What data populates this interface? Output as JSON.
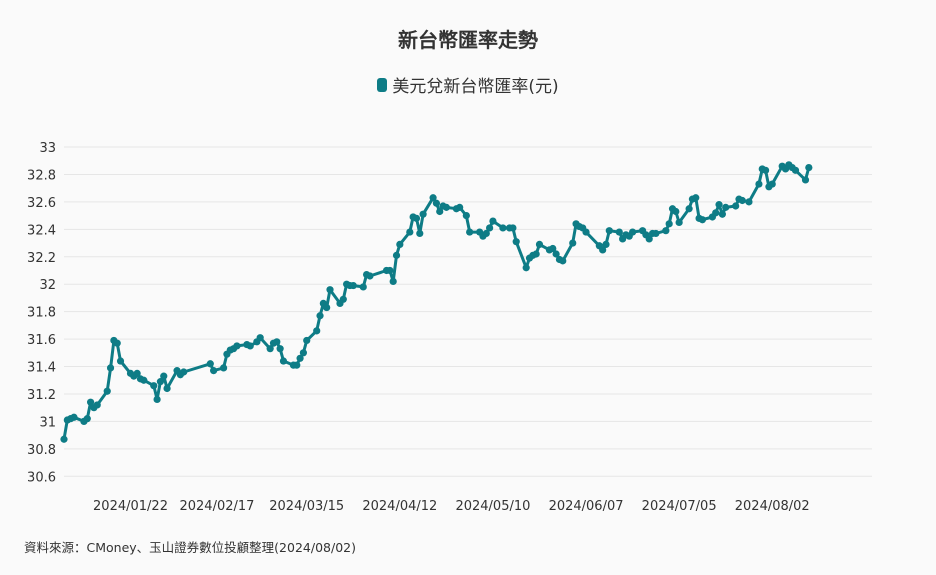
{
  "chart_data": {
    "type": "line",
    "title": "新台幣匯率走勢",
    "series": [
      {
        "name": "美元兌新台幣匯率(元)",
        "color": "#0e7c86",
        "points": [
          [
            "2024-01-02",
            30.87
          ],
          [
            "2024-01-03",
            31.01
          ],
          [
            "2024-01-04",
            31.02
          ],
          [
            "2024-01-05",
            31.03
          ],
          [
            "2024-01-08",
            31.0
          ],
          [
            "2024-01-09",
            31.02
          ],
          [
            "2024-01-10",
            31.14
          ],
          [
            "2024-01-11",
            31.1
          ],
          [
            "2024-01-12",
            31.12
          ],
          [
            "2024-01-15",
            31.22
          ],
          [
            "2024-01-16",
            31.39
          ],
          [
            "2024-01-17",
            31.59
          ],
          [
            "2024-01-18",
            31.57
          ],
          [
            "2024-01-19",
            31.44
          ],
          [
            "2024-01-22",
            31.35
          ],
          [
            "2024-01-23",
            31.33
          ],
          [
            "2024-01-24",
            31.35
          ],
          [
            "2024-01-25",
            31.31
          ],
          [
            "2024-01-26",
            31.3
          ],
          [
            "2024-01-29",
            31.26
          ],
          [
            "2024-01-30",
            31.16
          ],
          [
            "2024-01-31",
            31.29
          ],
          [
            "2024-02-01",
            31.33
          ],
          [
            "2024-02-02",
            31.24
          ],
          [
            "2024-02-05",
            31.37
          ],
          [
            "2024-02-06",
            31.34
          ],
          [
            "2024-02-07",
            31.36
          ],
          [
            "2024-02-15",
            31.42
          ],
          [
            "2024-02-16",
            31.37
          ],
          [
            "2024-02-19",
            31.39
          ],
          [
            "2024-02-20",
            31.49
          ],
          [
            "2024-02-21",
            31.52
          ],
          [
            "2024-02-22",
            31.53
          ],
          [
            "2024-02-23",
            31.55
          ],
          [
            "2024-02-26",
            31.56
          ],
          [
            "2024-02-27",
            31.55
          ],
          [
            "2024-02-29",
            31.58
          ],
          [
            "2024-03-01",
            31.61
          ],
          [
            "2024-03-04",
            31.53
          ],
          [
            "2024-03-05",
            31.57
          ],
          [
            "2024-03-06",
            31.58
          ],
          [
            "2024-03-07",
            31.53
          ],
          [
            "2024-03-08",
            31.44
          ],
          [
            "2024-03-11",
            31.41
          ],
          [
            "2024-03-12",
            31.41
          ],
          [
            "2024-03-13",
            31.46
          ],
          [
            "2024-03-14",
            31.5
          ],
          [
            "2024-03-15",
            31.59
          ],
          [
            "2024-03-18",
            31.66
          ],
          [
            "2024-03-19",
            31.77
          ],
          [
            "2024-03-20",
            31.86
          ],
          [
            "2024-03-21",
            31.83
          ],
          [
            "2024-03-22",
            31.96
          ],
          [
            "2024-03-25",
            31.86
          ],
          [
            "2024-03-26",
            31.89
          ],
          [
            "2024-03-27",
            32.0
          ],
          [
            "2024-03-28",
            31.99
          ],
          [
            "2024-03-29",
            31.99
          ],
          [
            "2024-04-01",
            31.98
          ],
          [
            "2024-04-02",
            32.07
          ],
          [
            "2024-04-03",
            32.06
          ],
          [
            "2024-04-08",
            32.1
          ],
          [
            "2024-04-09",
            32.1
          ],
          [
            "2024-04-10",
            32.02
          ],
          [
            "2024-04-11",
            32.21
          ],
          [
            "2024-04-12",
            32.29
          ],
          [
            "2024-04-15",
            32.38
          ],
          [
            "2024-04-16",
            32.49
          ],
          [
            "2024-04-17",
            32.48
          ],
          [
            "2024-04-18",
            32.37
          ],
          [
            "2024-04-19",
            32.51
          ],
          [
            "2024-04-22",
            32.63
          ],
          [
            "2024-04-23",
            32.59
          ],
          [
            "2024-04-24",
            32.53
          ],
          [
            "2024-04-25",
            32.57
          ],
          [
            "2024-04-26",
            32.56
          ],
          [
            "2024-04-29",
            32.55
          ],
          [
            "2024-04-30",
            32.56
          ],
          [
            "2024-05-02",
            32.5
          ],
          [
            "2024-05-03",
            32.38
          ],
          [
            "2024-05-06",
            32.38
          ],
          [
            "2024-05-07",
            32.35
          ],
          [
            "2024-05-08",
            32.37
          ],
          [
            "2024-05-09",
            32.41
          ],
          [
            "2024-05-10",
            32.46
          ],
          [
            "2024-05-13",
            32.41
          ],
          [
            "2024-05-15",
            32.41
          ],
          [
            "2024-05-16",
            32.41
          ],
          [
            "2024-05-17",
            32.31
          ],
          [
            "2024-05-20",
            32.12
          ],
          [
            "2024-05-21",
            32.19
          ],
          [
            "2024-05-22",
            32.21
          ],
          [
            "2024-05-23",
            32.22
          ],
          [
            "2024-05-24",
            32.29
          ],
          [
            "2024-05-27",
            32.25
          ],
          [
            "2024-05-28",
            32.26
          ],
          [
            "2024-05-29",
            32.22
          ],
          [
            "2024-05-30",
            32.18
          ],
          [
            "2024-05-31",
            32.17
          ],
          [
            "2024-06-03",
            32.3
          ],
          [
            "2024-06-04",
            32.44
          ],
          [
            "2024-06-05",
            32.42
          ],
          [
            "2024-06-06",
            32.41
          ],
          [
            "2024-06-07",
            32.38
          ],
          [
            "2024-06-11",
            32.28
          ],
          [
            "2024-06-12",
            32.25
          ],
          [
            "2024-06-13",
            32.29
          ],
          [
            "2024-06-14",
            32.39
          ],
          [
            "2024-06-17",
            32.38
          ],
          [
            "2024-06-18",
            32.33
          ],
          [
            "2024-06-19",
            32.36
          ],
          [
            "2024-06-20",
            32.35
          ],
          [
            "2024-06-21",
            32.38
          ],
          [
            "2024-06-24",
            32.39
          ],
          [
            "2024-06-25",
            32.36
          ],
          [
            "2024-06-26",
            32.33
          ],
          [
            "2024-06-27",
            32.37
          ],
          [
            "2024-06-28",
            32.37
          ],
          [
            "2024-07-01",
            32.39
          ],
          [
            "2024-07-02",
            32.44
          ],
          [
            "2024-07-03",
            32.55
          ],
          [
            "2024-07-04",
            32.53
          ],
          [
            "2024-07-05",
            32.45
          ],
          [
            "2024-07-08",
            32.55
          ],
          [
            "2024-07-09",
            32.62
          ],
          [
            "2024-07-10",
            32.63
          ],
          [
            "2024-07-11",
            32.48
          ],
          [
            "2024-07-12",
            32.47
          ],
          [
            "2024-07-15",
            32.49
          ],
          [
            "2024-07-16",
            32.52
          ],
          [
            "2024-07-17",
            32.58
          ],
          [
            "2024-07-18",
            32.51
          ],
          [
            "2024-07-19",
            32.56
          ],
          [
            "2024-07-22",
            32.57
          ],
          [
            "2024-07-23",
            32.62
          ],
          [
            "2024-07-24",
            32.61
          ],
          [
            "2024-07-26",
            32.6
          ],
          [
            "2024-07-29",
            32.73
          ],
          [
            "2024-07-30",
            32.84
          ],
          [
            "2024-07-31",
            32.83
          ],
          [
            "2024-08-01",
            32.71
          ],
          [
            "2024-08-02",
            32.73
          ],
          [
            "2024-08-05",
            32.86
          ],
          [
            "2024-08-06",
            32.84
          ],
          [
            "2024-08-07",
            32.87
          ],
          [
            "2024-08-08",
            32.85
          ],
          [
            "2024-08-09",
            32.83
          ],
          [
            "2024-08-12",
            32.76
          ],
          [
            "2024-08-13",
            32.85
          ]
        ]
      }
    ],
    "x_tick_labels": [
      "2024/01/22",
      "2024/02/17",
      "2024/03/15",
      "2024/04/12",
      "2024/05/10",
      "2024/06/07",
      "2024/07/05",
      "2024/08/02"
    ],
    "y_ticks": [
      30.6,
      30.8,
      31,
      31.2,
      31.4,
      31.6,
      31.8,
      32,
      32.2,
      32.4,
      32.6,
      32.8,
      33
    ],
    "ylim": [
      30.5,
      33
    ],
    "xlim": [
      "2024-01-02",
      "2024-09-01"
    ],
    "xlabel": "",
    "ylabel": "",
    "grid": true,
    "legend_position": "top"
  },
  "source_text": "資料來源：CMoney、玉山證券數位投顧整理(2024/08/02)"
}
